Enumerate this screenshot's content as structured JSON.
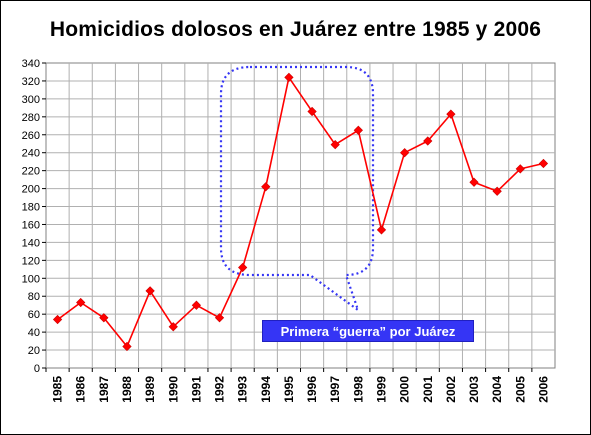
{
  "chart_data": {
    "type": "line",
    "title": "Homicidios dolosos en Juárez entre 1985 y 2006",
    "categories": [
      "1985",
      "1986",
      "1987",
      "1988",
      "1989",
      "1990",
      "1991",
      "1992",
      "1993",
      "1994",
      "1995",
      "1996",
      "1997",
      "1998",
      "1999",
      "2000",
      "2001",
      "2002",
      "2003",
      "2004",
      "2005",
      "2006"
    ],
    "series": [
      {
        "values": [
          54,
          73,
          56,
          24,
          86,
          46,
          70,
          56,
          112,
          202,
          324,
          286,
          249,
          265,
          154,
          240,
          253,
          283,
          207,
          197,
          222,
          228
        ]
      }
    ],
    "ylim": [
      0,
      340
    ],
    "yticks": [
      0,
      20,
      40,
      60,
      80,
      100,
      120,
      140,
      160,
      180,
      200,
      220,
      240,
      260,
      280,
      300,
      320,
      340
    ],
    "xlabel": "",
    "ylabel": "",
    "grid": true,
    "legend": "none",
    "annotation": "Primera “guerra” por Juárez",
    "colors": {
      "series": "#ff0000",
      "marker": "#ff0000",
      "grid": "#b0b0b0",
      "callout": "#3535f5",
      "callout_text": "#ffffff"
    }
  }
}
